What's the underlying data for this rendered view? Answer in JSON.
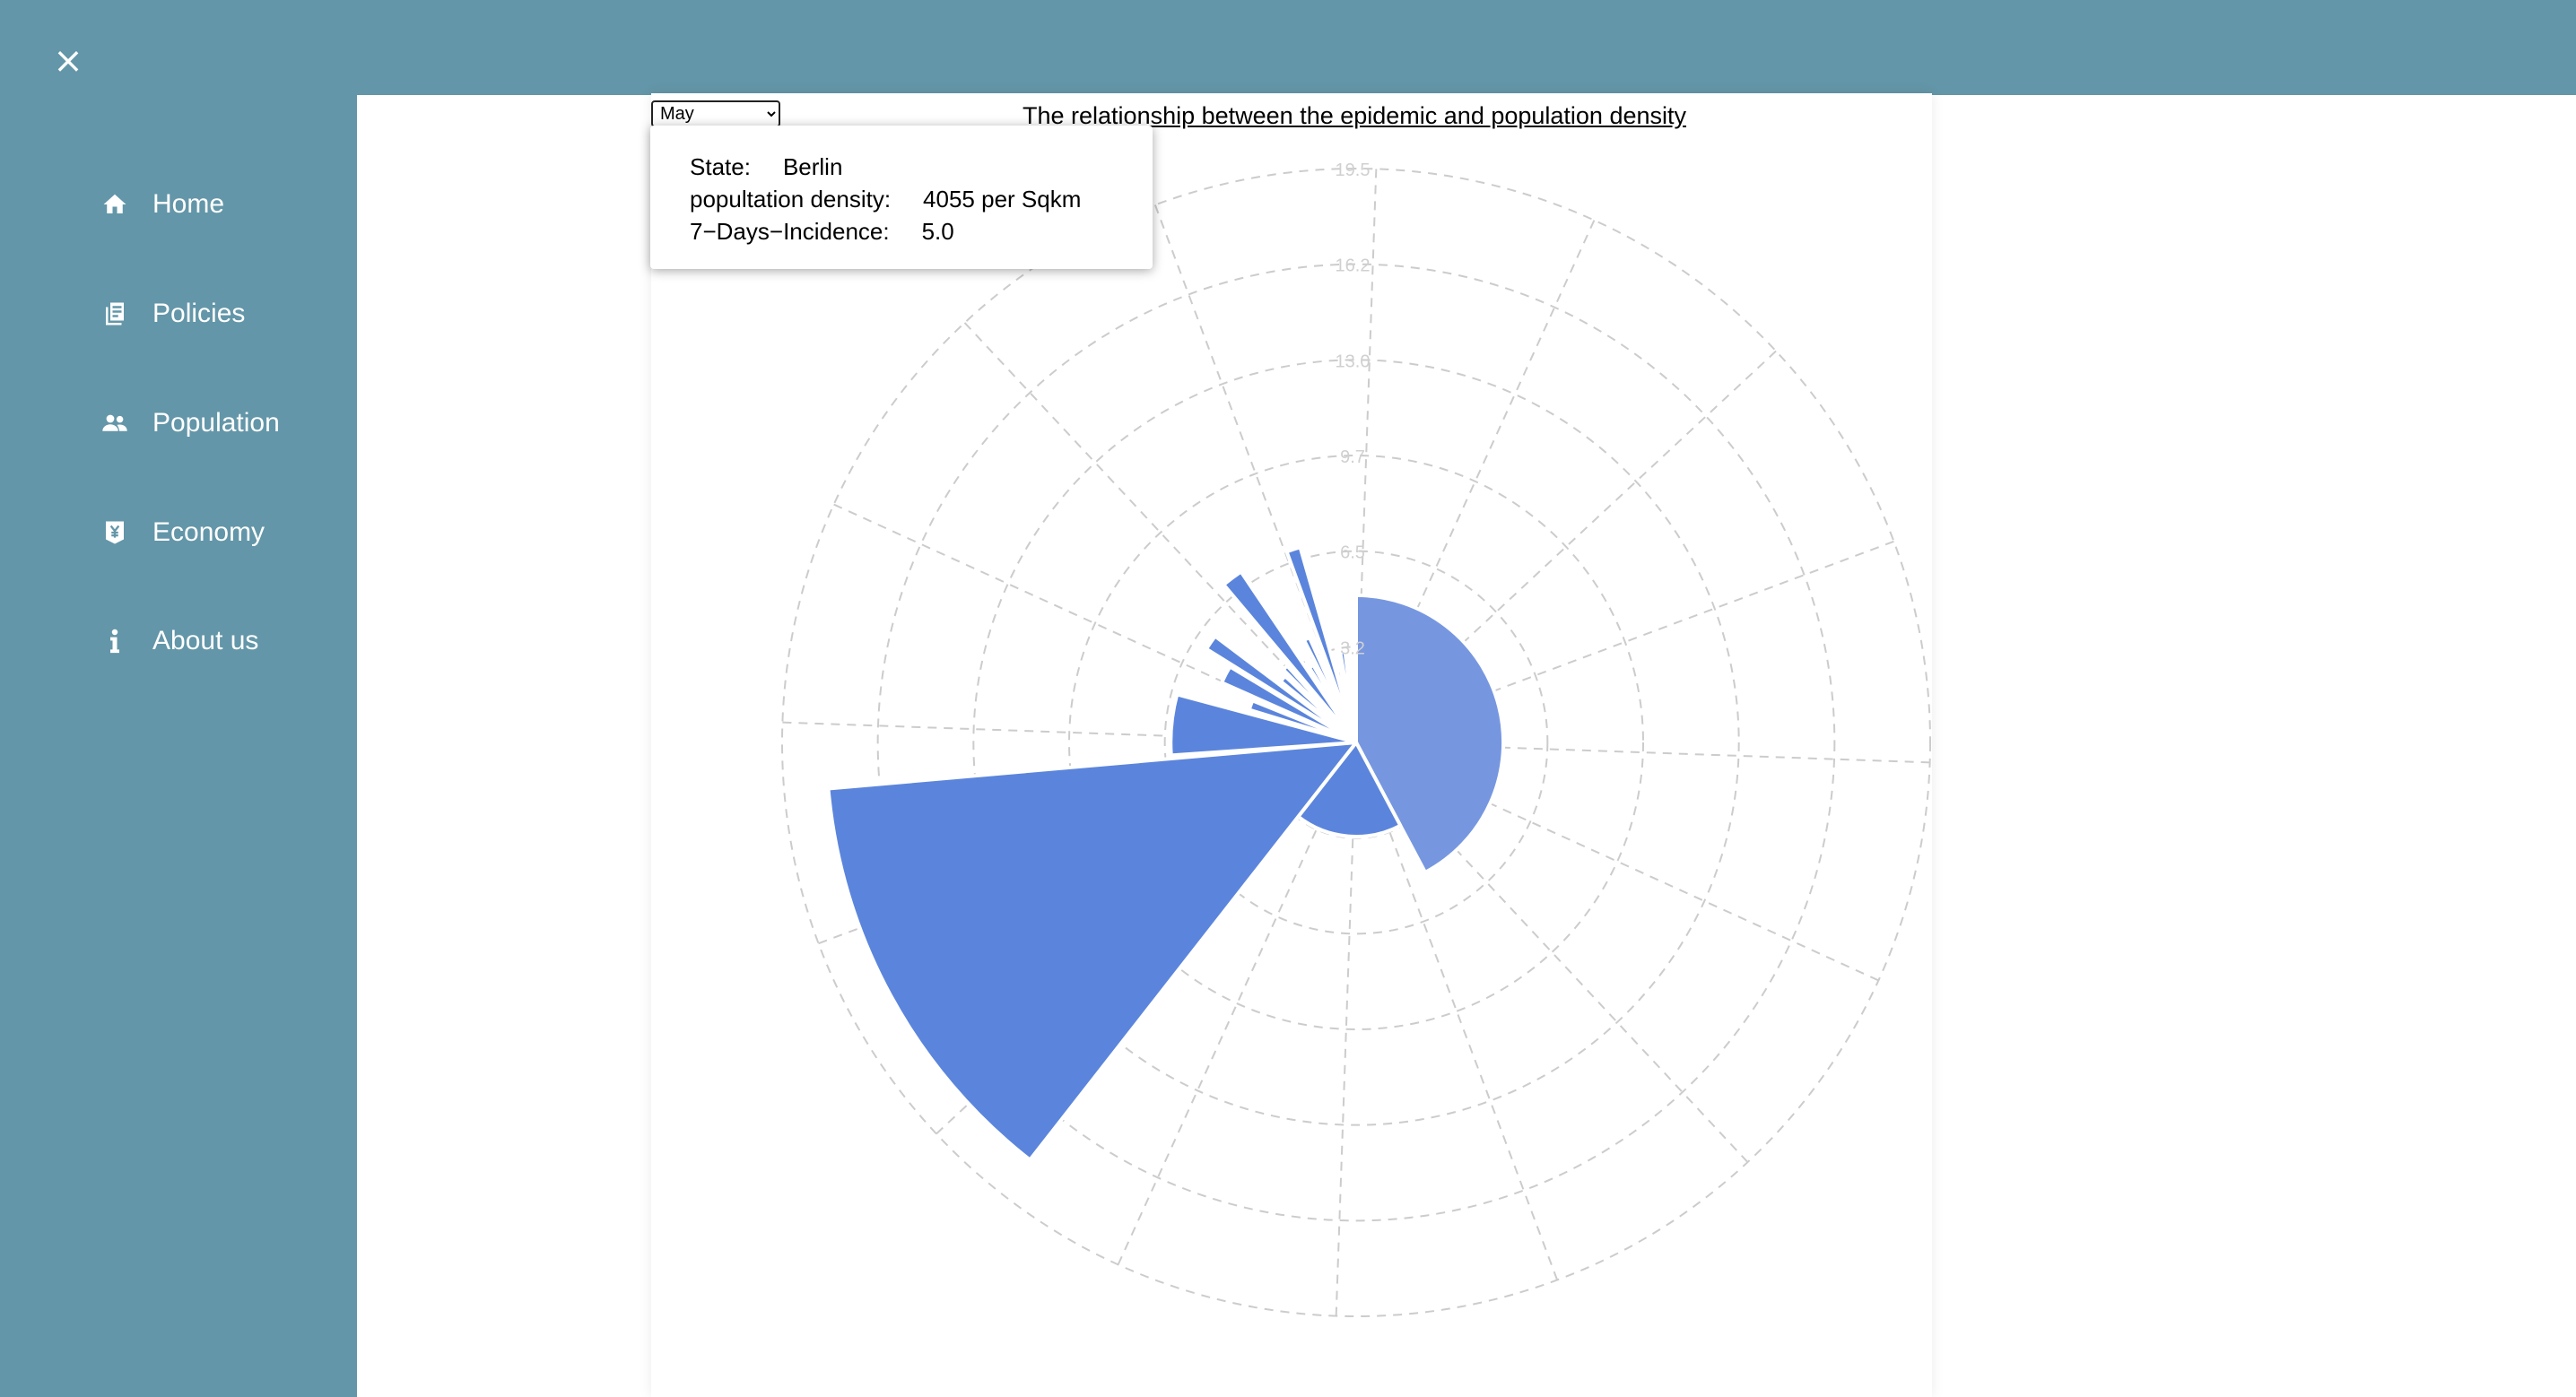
{
  "close_icon": "close-icon",
  "sidebar": {
    "items": [
      {
        "label": "Home",
        "icon": "home-icon"
      },
      {
        "label": "Policies",
        "icon": "document-icon"
      },
      {
        "label": "Population",
        "icon": "people-icon"
      },
      {
        "label": "Economy",
        "icon": "currency-icon"
      },
      {
        "label": "About us",
        "icon": "info-icon"
      }
    ]
  },
  "selector": {
    "selected": "May",
    "options": [
      "May"
    ]
  },
  "tooltip": {
    "state_label": "State:",
    "state_value": "Berlin",
    "density_label": "popultation density:",
    "density_value": "4055 per Sqkm",
    "incidence_label": "7−Days−Incidence:",
    "incidence_value": "5.0"
  },
  "colors": {
    "sidebar_bg": "#6396a8",
    "bar_fill": "#5b85dc",
    "bar_highlight": "#7697e0",
    "grid": "#cccccc"
  },
  "chart_data": {
    "type": "polar-bar",
    "title": "The relationship between the epidemic and population density",
    "radial_ticks": [
      "3.2",
      "6.5",
      "9.7",
      "13.0",
      "16.2",
      "19.5"
    ],
    "radial_max": 19.5,
    "grid": true,
    "rings": 6,
    "spokes": 16,
    "bars": [
      {
        "start_deg": 0,
        "end_deg": 152,
        "value": 5.0,
        "highlighted": true
      },
      {
        "start_deg": 152,
        "end_deg": 218,
        "value": 3.2,
        "highlighted": false
      },
      {
        "start_deg": 218,
        "end_deg": 265,
        "value": 18.0,
        "highlighted": false
      },
      {
        "start_deg": 266,
        "end_deg": 285,
        "value": 6.3,
        "highlighted": false
      },
      {
        "start_deg": 287,
        "end_deg": 292,
        "value": 3.8,
        "highlighted": false
      },
      {
        "start_deg": 294,
        "end_deg": 301,
        "value": 5.0,
        "highlighted": false
      },
      {
        "start_deg": 302,
        "end_deg": 307,
        "value": 6.0,
        "highlighted": false
      },
      {
        "start_deg": 309,
        "end_deg": 313,
        "value": 3.3,
        "highlighted": false
      },
      {
        "start_deg": 315,
        "end_deg": 318,
        "value": 3.5,
        "highlighted": false
      },
      {
        "start_deg": 320,
        "end_deg": 326,
        "value": 7.0,
        "highlighted": false
      },
      {
        "start_deg": 328,
        "end_deg": 331,
        "value": 3.0,
        "highlighted": false
      },
      {
        "start_deg": 333,
        "end_deg": 336,
        "value": 3.9,
        "highlighted": false
      },
      {
        "start_deg": 340,
        "end_deg": 344,
        "value": 6.9,
        "highlighted": false
      },
      {
        "start_deg": 345,
        "end_deg": 348,
        "value": 2.5,
        "highlighted": false
      },
      {
        "start_deg": 350,
        "end_deg": 353,
        "value": 3.1,
        "highlighted": false
      },
      {
        "start_deg": 355,
        "end_deg": 357,
        "value": 1.8,
        "highlighted": false
      }
    ]
  }
}
